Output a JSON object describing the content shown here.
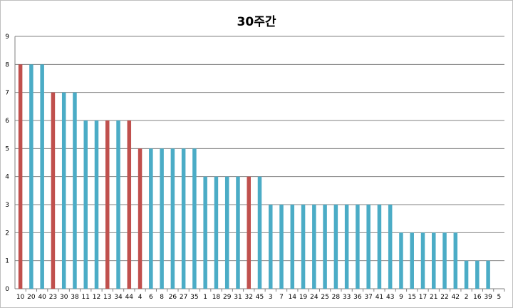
{
  "chart_data": {
    "type": "bar",
    "title": "30주간",
    "xlabel": "",
    "ylabel": "",
    "ylim": [
      0,
      9
    ],
    "yticks": [
      "0",
      "1",
      "2",
      "3",
      "4",
      "5",
      "6",
      "7",
      "8",
      "9"
    ],
    "grid": true,
    "legend": "none",
    "categories": [
      "10",
      "20",
      "40",
      "23",
      "30",
      "38",
      "11",
      "12",
      "13",
      "34",
      "44",
      "4",
      "6",
      "8",
      "26",
      "27",
      "35",
      "1",
      "18",
      "29",
      "31",
      "32",
      "45",
      "3",
      "7",
      "14",
      "19",
      "24",
      "25",
      "28",
      "33",
      "36",
      "37",
      "41",
      "43",
      "9",
      "15",
      "17",
      "21",
      "22",
      "42",
      "2",
      "16",
      "39",
      "5"
    ],
    "values": [
      8,
      8,
      8,
      7,
      7,
      7,
      6,
      6,
      6,
      6,
      6,
      5,
      5,
      5,
      5,
      5,
      5,
      4,
      4,
      4,
      4,
      4,
      4,
      3,
      3,
      3,
      3,
      3,
      3,
      3,
      3,
      3,
      3,
      3,
      3,
      2,
      2,
      2,
      2,
      2,
      2,
      1,
      1,
      1,
      0
    ],
    "colors": {
      "default": "#4bacc6",
      "highlight": "#c0504d",
      "grid": "#808080",
      "axis": "#808080"
    },
    "highlighted": [
      "10",
      "23",
      "13",
      "44",
      "4",
      "32"
    ]
  }
}
